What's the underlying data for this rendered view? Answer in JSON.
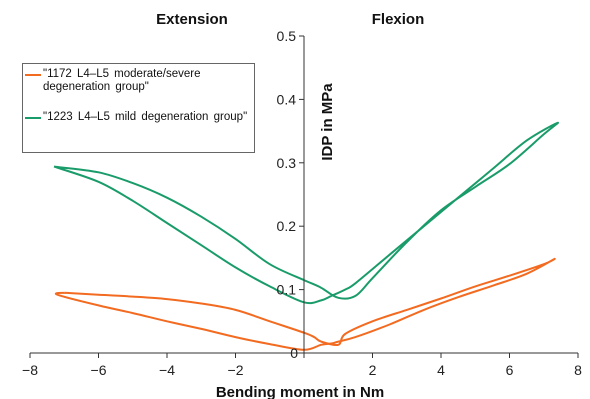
{
  "chart_data": {
    "type": "line",
    "annotations": {
      "left": "Extension",
      "right": "Flexion"
    },
    "xlabel": "Bending moment in Nm",
    "ylabel": "IDP  in  MPa",
    "xlim": [
      -8,
      8
    ],
    "ylim": [
      0,
      0.5
    ],
    "xticks": [
      -8,
      -6,
      -4,
      -2,
      0,
      2,
      4,
      6,
      8
    ],
    "yticks": [
      0.1,
      0.2,
      0.3,
      0.4,
      0.5
    ],
    "ytick_labels": [
      "0.1",
      "0.2",
      "0.3",
      "0.4",
      "0.5"
    ],
    "origin_label": "0",
    "legend_position": "top-left",
    "series": [
      {
        "name": "\"1172  L4–L5  moderate/severe degeneration group\"",
        "color": "#f26b21",
        "x": [
          -7.0,
          -6.0,
          -5.0,
          -4.0,
          -3.0,
          -2.0,
          -1.0,
          0.0,
          0.3,
          0.5,
          1.0,
          1.2,
          2.0,
          3.0,
          4.0,
          5.0,
          6.0,
          7.0,
          7.3,
          6.5,
          5.5,
          4.5,
          3.5,
          2.5,
          1.5,
          1.0,
          0.8,
          0.5,
          0.0,
          -1.0,
          -2.0,
          -3.0,
          -4.0,
          -5.0,
          -6.0,
          -7.2,
          -7.0
        ],
        "y": [
          0.095,
          0.092,
          0.089,
          0.085,
          0.078,
          0.068,
          0.05,
          0.032,
          0.025,
          0.018,
          0.013,
          0.03,
          0.05,
          0.068,
          0.086,
          0.105,
          0.122,
          0.14,
          0.148,
          0.125,
          0.106,
          0.088,
          0.068,
          0.045,
          0.025,
          0.018,
          0.015,
          0.013,
          0.005,
          0.014,
          0.025,
          0.038,
          0.05,
          0.063,
          0.075,
          0.092,
          0.095
        ]
      },
      {
        "name": "\"1223  L4–L5  mild degeneration group\"",
        "color": "#1a9c6a",
        "x": [
          -7.3,
          -6.0,
          -5.0,
          -4.0,
          -3.0,
          -2.0,
          -1.0,
          0.0,
          0.5,
          1.0,
          1.5,
          2.0,
          3.0,
          4.0,
          5.0,
          6.0,
          7.0,
          7.4,
          6.5,
          5.5,
          4.5,
          3.5,
          2.5,
          1.5,
          1.2,
          0.8,
          0.5,
          0.0,
          -1.0,
          -2.0,
          -3.0,
          -4.0,
          -5.0,
          -6.0,
          -7.3
        ],
        "y": [
          0.294,
          0.285,
          0.268,
          0.245,
          0.215,
          0.18,
          0.14,
          0.115,
          0.103,
          0.087,
          0.09,
          0.118,
          0.175,
          0.225,
          0.262,
          0.298,
          0.345,
          0.363,
          0.335,
          0.29,
          0.245,
          0.2,
          0.155,
          0.11,
          0.1,
          0.09,
          0.083,
          0.08,
          0.105,
          0.135,
          0.17,
          0.205,
          0.24,
          0.27,
          0.294
        ]
      }
    ]
  }
}
